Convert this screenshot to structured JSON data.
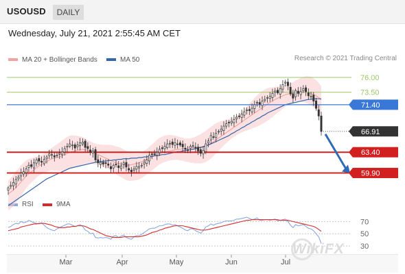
{
  "header": {
    "symbol": "USOUSD",
    "timeframe": "DAILY"
  },
  "datetime": "Wednesday, July 21, 2021 2:55:45 AM CET",
  "legend": {
    "ma20": {
      "label": "MA 20 + Bollinger Bands",
      "color": "#f4a3a3"
    },
    "ma50": {
      "label": "MA 50",
      "color": "#3366aa"
    }
  },
  "credit": "Research © 2021 Trading Central",
  "rsi_legend": {
    "rsi": {
      "label": "RSI",
      "color": "#8aa8e0"
    },
    "ma9": {
      "label": "9MA",
      "color": "#d42a2a"
    }
  },
  "watermark": "WikiFX",
  "chart_data": [
    {
      "type": "candlestick",
      "title": "USOUSD",
      "ylim": [
        56.5,
        77.5
      ],
      "x_ticks": [
        "Mar",
        "Apr",
        "May",
        "Jun",
        "Jul"
      ],
      "levels": [
        {
          "value": 76.0,
          "label": "76.00",
          "color": "#9cc86a",
          "style": "text"
        },
        {
          "value": 73.5,
          "label": "73.50",
          "color": "#9cc86a",
          "style": "text"
        },
        {
          "value": 71.4,
          "label": "71.40",
          "color": "#3a78d8",
          "style": "box"
        },
        {
          "value": 66.91,
          "label": "66.91",
          "color": "#333333",
          "style": "box",
          "dotted": true
        },
        {
          "value": 63.4,
          "label": "63.40",
          "color": "#d21f1f",
          "style": "box"
        },
        {
          "value": 59.9,
          "label": "59.90",
          "color": "#d21f1f",
          "style": "box"
        }
      ],
      "close_series": [
        57.4,
        57.8,
        58.3,
        58.8,
        59.2,
        59.9,
        60.1,
        60.6,
        61.2,
        61.0,
        61.6,
        62.1,
        61.9,
        61.7,
        62.2,
        62.6,
        63.1,
        63.0,
        62.6,
        62.9,
        63.2,
        63.5,
        64.0,
        64.4,
        64.8,
        64.6,
        64.1,
        64.6,
        65.0,
        65.1,
        64.2,
        64.0,
        63.4,
        63.6,
        62.1,
        61.6,
        61.7,
        61.4,
        61.5,
        61.2,
        60.6,
        61.2,
        61.3,
        60.8,
        61.1,
        61.6,
        60.9,
        60.4,
        60.1,
        60.6,
        61.0,
        61.0,
        61.2,
        61.7,
        62.1,
        62.9,
        63.0,
        63.1,
        63.4,
        63.9,
        64.0,
        64.4,
        64.8,
        64.9,
        64.7,
        65.0,
        64.8,
        64.6,
        64.3,
        63.9,
        63.8,
        64.4,
        64.5,
        64.2,
        63.6,
        63.2,
        63.7,
        64.8,
        65.3,
        66.2,
        66.0,
        66.6,
        66.9,
        67.3,
        67.8,
        68.2,
        68.4,
        68.6,
        68.9,
        69.3,
        69.4,
        69.8,
        70.2,
        70.5,
        70.4,
        70.8,
        71.4,
        71.8,
        71.5,
        72.0,
        72.3,
        72.6,
        72.8,
        73.3,
        73.7,
        73.4,
        74.1,
        74.8,
        75.2,
        74.6,
        73.2,
        72.5,
        73.8,
        73.3,
        73.6,
        74.1,
        73.6,
        72.9,
        72.8,
        72.0,
        70.8,
        69.5,
        66.9
      ],
      "ma20_series": [
        56.4,
        56.7,
        57.0,
        57.5,
        57.9,
        58.4,
        58.9,
        59.4,
        59.8,
        60.1,
        60.4,
        60.8,
        61.1,
        61.3,
        61.6,
        61.8,
        62.1,
        62.3,
        62.4,
        62.5,
        62.6,
        62.8,
        63.0,
        63.2,
        63.4,
        63.5,
        63.6,
        63.7,
        63.8,
        63.9,
        63.8,
        63.7,
        63.6,
        63.4,
        63.2,
        63.0,
        62.8,
        62.6,
        62.4,
        62.2,
        62.0,
        61.8,
        61.6,
        61.5,
        61.4,
        61.3,
        61.2,
        61.2,
        61.3,
        61.4,
        61.5,
        61.6,
        61.8,
        62.0,
        62.2,
        62.4,
        62.6,
        62.8,
        63.0,
        63.2,
        63.3,
        63.4,
        63.5,
        63.6,
        63.7,
        63.8,
        63.9,
        63.9,
        64.0,
        64.0,
        64.1,
        64.1,
        64.2,
        64.2,
        64.3,
        64.3,
        64.4,
        64.5,
        64.7,
        64.9,
        65.2,
        65.5,
        65.8,
        66.1,
        66.4,
        66.7,
        67.0,
        67.3,
        67.6,
        67.9,
        68.2,
        68.5,
        68.8,
        69.1,
        69.4,
        69.7,
        70.0,
        70.3,
        70.6,
        70.9,
        71.2,
        71.5,
        71.8,
        72.0,
        72.3,
        72.5,
        72.7,
        72.9,
        73.1,
        73.2,
        73.3,
        73.4,
        73.5,
        73.5,
        73.5,
        73.5,
        73.5,
        73.4,
        73.3,
        73.1,
        72.9,
        72.6,
        72.2
      ],
      "ma50_series": [
        54.4,
        54.7,
        55.0,
        55.3,
        55.6,
        55.9,
        56.2,
        56.5,
        56.8,
        57.1,
        57.4,
        57.7,
        58.0,
        58.3,
        58.6,
        58.9,
        59.1,
        59.3,
        59.5,
        59.7,
        59.9,
        60.1,
        60.3,
        60.5,
        60.7,
        60.8,
        60.9,
        61.0,
        61.1,
        61.2,
        61.3,
        61.4,
        61.5,
        61.6,
        61.7,
        61.8,
        61.8,
        61.9,
        61.9,
        62.0,
        62.0,
        62.1,
        62.1,
        62.2,
        62.2,
        62.3,
        62.3,
        62.3,
        62.4,
        62.4,
        62.4,
        62.5,
        62.5,
        62.6,
        62.6,
        62.7,
        62.7,
        62.8,
        62.8,
        62.9,
        63.0,
        63.0,
        63.1,
        63.2,
        63.3,
        63.4,
        63.5,
        63.5,
        63.6,
        63.7,
        63.8,
        63.8,
        63.9,
        64.0,
        64.1,
        64.2,
        64.3,
        64.5,
        64.6,
        64.8,
        65.0,
        65.2,
        65.4,
        65.6,
        65.8,
        66.0,
        66.2,
        66.5,
        66.7,
        67.0,
        67.2,
        67.5,
        67.7,
        68.0,
        68.2,
        68.5,
        68.7,
        69.0,
        69.2,
        69.5,
        69.7,
        70.0,
        70.2,
        70.4,
        70.6,
        70.8,
        71.0,
        71.2,
        71.4,
        71.5,
        71.6,
        71.7,
        71.8,
        71.9,
        72.0,
        72.1,
        72.2,
        72.3,
        72.3,
        72.4,
        72.4,
        72.4,
        72.4
      ],
      "bollinger_width": 2.2,
      "forecast_arrow": {
        "from": 66.91,
        "to": 59.9
      }
    },
    {
      "type": "line",
      "title": "RSI",
      "ylim": [
        20,
        85
      ],
      "y_ticks": [
        70,
        50,
        30
      ],
      "series": [
        {
          "name": "RSI",
          "color": "#8aa8e0",
          "values": [
            60,
            62,
            65,
            67,
            66,
            70,
            68,
            69,
            72,
            70,
            68,
            67,
            66,
            68,
            64,
            60,
            58,
            56,
            55,
            58,
            60,
            62,
            64,
            66,
            66,
            64,
            62,
            63,
            65,
            62,
            56,
            54,
            50,
            51,
            44,
            43,
            44,
            43,
            44,
            43,
            41,
            46,
            47,
            44,
            46,
            48,
            44,
            42,
            41,
            45,
            47,
            47,
            49,
            52,
            55,
            58,
            59,
            59,
            61,
            63,
            63,
            65,
            66,
            66,
            64,
            65,
            63,
            61,
            59,
            56,
            55,
            58,
            58,
            55,
            53,
            51,
            55,
            61,
            63,
            66,
            64,
            66,
            67,
            68,
            70,
            71,
            71,
            71,
            72,
            74,
            74,
            75,
            76,
            77,
            75,
            73,
            74,
            76,
            72,
            72,
            73,
            73,
            72,
            73,
            74,
            71,
            72,
            73,
            74,
            70,
            64,
            60,
            65,
            63,
            64,
            65,
            62,
            59,
            58,
            55,
            50,
            45,
            34
          ]
        },
        {
          "name": "9MA",
          "color": "#d42a2a",
          "values": [
            55,
            56,
            57,
            58,
            59,
            61,
            62,
            63,
            64,
            65,
            66,
            66,
            67,
            67,
            67,
            66,
            65,
            64,
            62,
            61,
            60,
            60,
            60,
            61,
            61,
            62,
            62,
            63,
            63,
            63,
            62,
            60,
            58,
            57,
            55,
            53,
            51,
            49,
            47,
            46,
            45,
            44,
            44,
            44,
            44,
            45,
            45,
            45,
            45,
            45,
            45,
            45,
            46,
            47,
            48,
            50,
            52,
            53,
            54,
            56,
            57,
            59,
            60,
            61,
            62,
            63,
            63,
            63,
            63,
            62,
            61,
            60,
            59,
            58,
            57,
            56,
            56,
            56,
            57,
            58,
            59,
            60,
            61,
            62,
            63,
            64,
            65,
            66,
            67,
            68,
            69,
            70,
            71,
            72,
            72,
            73,
            73,
            73,
            73,
            73,
            73,
            73,
            73,
            73,
            73,
            73,
            72,
            72,
            72,
            72,
            71,
            70,
            69,
            68,
            67,
            66,
            65,
            64,
            63,
            62,
            60,
            57,
            54
          ]
        }
      ]
    }
  ]
}
